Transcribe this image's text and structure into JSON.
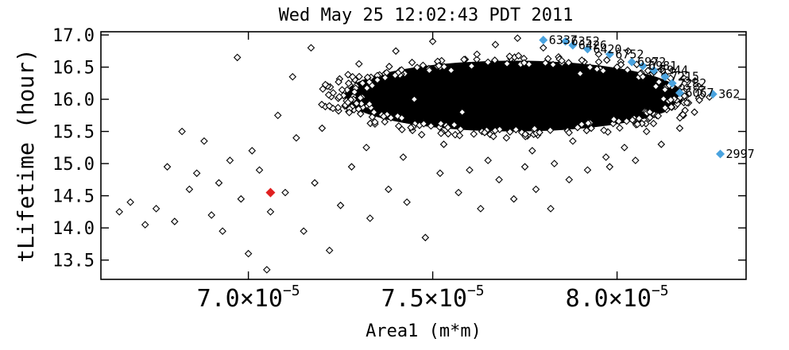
{
  "chart_data": {
    "type": "scatter",
    "title": "Wed May 25 12:02:43 PDT 2011",
    "xlabel": "Area1 (m*m)",
    "ylabel": "tLifetime (hour)",
    "xlim": [
      6.6e-05,
      8.35e-05
    ],
    "ylim": [
      13.2,
      17.05
    ],
    "x_ticks": [
      {
        "value": 7e-05,
        "mantissa": "7.0×10",
        "exponent": "−5"
      },
      {
        "value": 7.5e-05,
        "mantissa": "7.5×10",
        "exponent": "−5"
      },
      {
        "value": 8e-05,
        "mantissa": "8.0×10",
        "exponent": "−5"
      }
    ],
    "y_ticks": [
      {
        "value": 13.5,
        "label": "13.5"
      },
      {
        "value": 14.0,
        "label": "14.0"
      },
      {
        "value": 14.5,
        "label": "14.5"
      },
      {
        "value": 15.0,
        "label": "15.0"
      },
      {
        "value": 15.5,
        "label": "15.5"
      },
      {
        "value": 16.0,
        "label": "16.0"
      },
      {
        "value": 16.5,
        "label": "16.5"
      },
      {
        "value": 17.0,
        "label": "17.0"
      }
    ],
    "grid": false,
    "series": [
      {
        "marker": "open-diamond",
        "color": "#000000",
        "points": [
          [
            6.65e-05,
            14.25
          ],
          [
            6.68e-05,
            14.4
          ],
          [
            6.72e-05,
            14.05
          ],
          [
            6.75e-05,
            14.3
          ],
          [
            6.78e-05,
            14.95
          ],
          [
            6.8e-05,
            14.1
          ],
          [
            6.82e-05,
            15.5
          ],
          [
            6.84e-05,
            14.6
          ],
          [
            6.86e-05,
            14.85
          ],
          [
            6.88e-05,
            15.35
          ],
          [
            6.9e-05,
            14.2
          ],
          [
            6.92e-05,
            14.7
          ],
          [
            6.93e-05,
            13.95
          ],
          [
            6.95e-05,
            15.05
          ],
          [
            6.97e-05,
            16.65
          ],
          [
            6.98e-05,
            14.45
          ],
          [
            7e-05,
            13.6
          ],
          [
            7.01e-05,
            15.2
          ],
          [
            7.03e-05,
            14.9
          ],
          [
            7.05e-05,
            13.35
          ],
          [
            7.06e-05,
            14.25
          ],
          [
            7.08e-05,
            15.75
          ],
          [
            7.1e-05,
            14.55
          ],
          [
            7.12e-05,
            16.35
          ],
          [
            7.13e-05,
            15.4
          ],
          [
            7.15e-05,
            13.95
          ],
          [
            7.17e-05,
            16.8
          ],
          [
            7.18e-05,
            14.7
          ],
          [
            7.2e-05,
            15.55
          ],
          [
            7.22e-05,
            13.65
          ],
          [
            7.23e-05,
            16.1
          ],
          [
            7.25e-05,
            14.35
          ],
          [
            7.27e-05,
            15.95
          ],
          [
            7.28e-05,
            14.95
          ],
          [
            7.3e-05,
            16.55
          ],
          [
            7.32e-05,
            15.25
          ],
          [
            7.33e-05,
            14.15
          ],
          [
            7.35e-05,
            16.3
          ],
          [
            7.37e-05,
            15.65
          ],
          [
            7.38e-05,
            14.6
          ],
          [
            7.4e-05,
            16.75
          ],
          [
            7.42e-05,
            15.1
          ],
          [
            7.43e-05,
            14.4
          ],
          [
            7.45e-05,
            16.0
          ],
          [
            7.47e-05,
            15.45
          ],
          [
            7.48e-05,
            13.85
          ],
          [
            7.5e-05,
            16.9
          ],
          [
            7.52e-05,
            14.85
          ],
          [
            7.53e-05,
            15.3
          ],
          [
            7.55e-05,
            16.45
          ],
          [
            7.57e-05,
            14.55
          ],
          [
            7.58e-05,
            15.8
          ],
          [
            7.6e-05,
            14.9
          ],
          [
            7.62e-05,
            16.7
          ],
          [
            7.63e-05,
            14.3
          ],
          [
            7.65e-05,
            15.05
          ],
          [
            7.67e-05,
            16.85
          ],
          [
            7.68e-05,
            14.75
          ],
          [
            7.7e-05,
            15.4
          ],
          [
            7.72e-05,
            14.45
          ],
          [
            7.73e-05,
            16.95
          ],
          [
            7.75e-05,
            14.95
          ],
          [
            7.77e-05,
            15.2
          ],
          [
            7.78e-05,
            14.6
          ],
          [
            7.8e-05,
            16.8
          ],
          [
            7.82e-05,
            14.3
          ],
          [
            7.83e-05,
            15.0
          ],
          [
            7.85e-05,
            16.6
          ],
          [
            7.87e-05,
            14.75
          ],
          [
            7.88e-05,
            15.35
          ],
          [
            7.9e-05,
            16.4
          ],
          [
            7.92e-05,
            14.9
          ],
          [
            7.93e-05,
            15.55
          ],
          [
            7.95e-05,
            16.7
          ],
          [
            7.97e-05,
            15.1
          ],
          [
            7.98e-05,
            14.95
          ],
          [
            8e-05,
            16.5
          ],
          [
            8.02e-05,
            15.25
          ],
          [
            8.03e-05,
            16.75
          ],
          [
            8.05e-05,
            15.05
          ],
          [
            8.07e-05,
            16.35
          ],
          [
            8.08e-05,
            15.5
          ],
          [
            8.1e-05,
            16.6
          ],
          [
            8.12e-05,
            15.3
          ],
          [
            8.13e-05,
            16.15
          ],
          [
            8.15e-05,
            16.45
          ],
          [
            8.17e-05,
            15.55
          ],
          [
            8.19e-05,
            16.3
          ],
          [
            8.21e-05,
            15.8
          ],
          [
            8.23e-05,
            16.05
          ]
        ],
        "dense_cluster": {
          "x_center": 7.72e-05,
          "x_halfwidth": 4.6e-06,
          "y_center": 16.05,
          "y_halfwidth": 0.55
        }
      },
      {
        "marker": "filled-diamond",
        "color": "#4aa3df",
        "points": [
          {
            "x": 7.8e-05,
            "y": 16.92,
            "label": "6337"
          },
          {
            "x": 7.86e-05,
            "y": 16.9,
            "label": "6352"
          },
          {
            "x": 7.88e-05,
            "y": 16.84,
            "label": "6426"
          },
          {
            "x": 7.92e-05,
            "y": 16.78,
            "label": "6420"
          },
          {
            "x": 7.98e-05,
            "y": 16.7,
            "label": "6752"
          },
          {
            "x": 8.04e-05,
            "y": 16.58,
            "label": "6972"
          },
          {
            "x": 8.07e-05,
            "y": 16.52,
            "label": "6981"
          },
          {
            "x": 8.1e-05,
            "y": 16.45,
            "label": "6944"
          },
          {
            "x": 8.13e-05,
            "y": 16.35,
            "label": "7215"
          },
          {
            "x": 8.15e-05,
            "y": 16.25,
            "label": "7282"
          },
          {
            "x": 8.17e-05,
            "y": 16.1,
            "label": "6067"
          },
          {
            "x": 8.26e-05,
            "y": 16.08,
            "label": "362"
          },
          {
            "x": 8.28e-05,
            "y": 15.15,
            "label": "2997"
          }
        ]
      },
      {
        "marker": "filled-diamond",
        "color": "#e02020",
        "points": [
          [
            7.06e-05,
            14.55
          ]
        ]
      }
    ]
  }
}
